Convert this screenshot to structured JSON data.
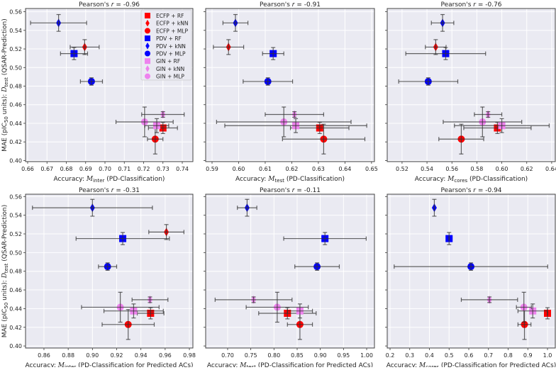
{
  "chart_data": {
    "type": "scatter",
    "ylabel": {
      "pre": "MAE (pIC",
      "sub1": "50",
      "mid": " units): ",
      "sym": "D",
      "sub2": "test",
      "post": " (QSAR-Prediction)"
    },
    "yticks": [
      0.4,
      0.42,
      0.44,
      0.46,
      0.48,
      0.5,
      0.52,
      0.54,
      0.56
    ],
    "legend": {
      "placement": "top-right of first panel"
    },
    "series": [
      {
        "name": "ECFP + RF",
        "color": "#ff0000",
        "marker": "square",
        "y": 0.435,
        "yerr": 0.006
      },
      {
        "name": "ECFP + kNN",
        "color": "#ff0000",
        "marker": "diamond",
        "y": 0.522,
        "yerr": 0.008
      },
      {
        "name": "ECFP + MLP",
        "color": "#ff0000",
        "marker": "circle",
        "y": 0.423,
        "yerr": 0.016
      },
      {
        "name": "PDV + RF",
        "color": "#0000ff",
        "marker": "square",
        "y": 0.515,
        "yerr": 0.0065
      },
      {
        "name": "PDV + kNN",
        "color": "#0000ff",
        "marker": "diamond",
        "y": 0.548,
        "yerr": 0.009
      },
      {
        "name": "PDV + MLP",
        "color": "#0000ff",
        "marker": "circle",
        "y": 0.485,
        "yerr": 0.004
      },
      {
        "name": "GIN + RF",
        "color": "#ee82ee",
        "marker": "square",
        "y": 0.4375,
        "yerr": 0.0075
      },
      {
        "name": "GIN + kNN",
        "color": "#ee82ee",
        "marker": "diamond",
        "y": 0.4495,
        "yerr": 0.003
      },
      {
        "name": "GIN + MLP",
        "color": "#ee82ee",
        "marker": "circle",
        "y": 0.4415,
        "yerr": 0.016
      }
    ],
    "panels": [
      {
        "title_pre": "Pearson's ",
        "title_r": "r",
        "title_post": " = -0.96",
        "xlabel": {
          "pre": "Accuracy: ",
          "sym": "M",
          "sub": "inter",
          "post": " (PD-Classification)"
        },
        "xlim": [
          0.6589,
          0.7455
        ],
        "ylim": [
          0.3988,
          0.5635
        ],
        "xdec": 2,
        "xticks": [
          0.66,
          0.67,
          0.68,
          0.69,
          0.7,
          0.71,
          0.72,
          0.73,
          0.74
        ],
        "x": [
          0.73,
          0.6895,
          0.726,
          0.684,
          0.676,
          0.693,
          0.7268,
          0.73,
          0.7205
        ],
        "xerr": [
          0.0075,
          0.0075,
          0.004,
          0.007,
          0.0145,
          0.0057,
          0.0062,
          0.011,
          0.0148
        ]
      },
      {
        "title_pre": "Pearson's ",
        "title_r": "r",
        "title_post": " = -0.91",
        "xlabel": {
          "pre": "Accuracy: ",
          "sym": "M",
          "sub": "test",
          "post": " (PD-Classification)"
        },
        "xlim": [
          0.5876,
          0.6511
        ],
        "ylim": [
          0.3988,
          0.5635
        ],
        "xdec": 2,
        "xticks": [
          0.59,
          0.6,
          0.61,
          0.62,
          0.63,
          0.64,
          0.65
        ],
        "x": [
          0.6305,
          0.5962,
          0.632,
          0.613,
          0.5988,
          0.611,
          0.6215,
          0.621,
          0.617
        ],
        "xerr": [
          0.011,
          0.0057,
          0.0155,
          0.004,
          0.0047,
          0.0093,
          0.0267,
          0.011,
          0.0253
        ]
      },
      {
        "title_pre": "Pearson's ",
        "title_r": "r",
        "title_post": " = -0.76",
        "xlabel": {
          "pre": "Accuracy: ",
          "sym": "M",
          "sub": "cores",
          "post": " (PD-Classification)"
        },
        "xlim": [
          0.5081,
          0.6429
        ],
        "ylim": [
          0.3988,
          0.5635
        ],
        "xdec": 2,
        "xticks": [
          0.52,
          0.54,
          0.56,
          0.58,
          0.6,
          0.62,
          0.64
        ],
        "x": [
          0.5965,
          0.547,
          0.5675,
          0.555,
          0.5525,
          0.541,
          0.6,
          0.589,
          0.5845
        ],
        "xerr": [
          0.027,
          0.0083,
          0.018,
          0.032,
          0.009,
          0.0237,
          0.038,
          0.011,
          0.0315
        ]
      },
      {
        "title_pre": "Pearson's ",
        "title_r": "r",
        "title_post": " = -0.31",
        "xlabel": {
          "pre": "Accuracy: ",
          "sym": "M",
          "sub": "inter",
          "post": " (PD-Classification for Predicted ACs)"
        },
        "xlim": [
          0.8448,
          0.9829
        ],
        "ylim": [
          0.3978,
          0.5625
        ],
        "xdec": 2,
        "xticks": [
          0.86,
          0.88,
          0.9,
          0.92,
          0.94,
          0.96,
          0.98
        ],
        "x": [
          0.948,
          0.961,
          0.9295,
          0.925,
          0.9,
          0.9125,
          0.934,
          0.9475,
          0.923
        ],
        "xerr": [
          0.011,
          0.0145,
          0.0215,
          0.0385,
          0.0495,
          0.0075,
          0.0245,
          0.0148,
          0.032
        ]
      },
      {
        "title_pre": "Pearson's ",
        "title_r": "r",
        "title_post": " = -0.11",
        "xlabel": {
          "pre": "Accuracy: ",
          "sym": "M",
          "sub": "test",
          "post": " (PD-Classification for Predicted ACs)"
        },
        "xlim": [
          0.6526,
          1.0168
        ],
        "ylim": [
          0.3978,
          0.5625
        ],
        "xdec": 2,
        "xticks": [
          0.7,
          0.75,
          0.8,
          0.85,
          0.9,
          0.95,
          1.0
        ],
        "x": [
          0.829,
          null,
          0.856,
          0.91,
          0.742,
          0.893,
          0.856,
          0.756,
          0.807
        ],
        "xerr": [
          0.062,
          null,
          0.027,
          0.089,
          0.021,
          0.048,
          0.027,
          0.083,
          0.067
        ]
      },
      {
        "title_pre": "Pearson's ",
        "title_r": "r",
        "title_post": " = -0.94",
        "xlabel": {
          "pre": "Accuracy: ",
          "sym": "M",
          "sub": "cores",
          "post": " (PD-Classification for Predicted ACs)"
        },
        "xlim": [
          0.1856,
          1.0396
        ],
        "ylim": [
          0.3978,
          0.5625
        ],
        "xdec": 1,
        "xticks": [
          0.2,
          0.3,
          0.4,
          0.5,
          0.6,
          0.7,
          0.8,
          0.9,
          1.0
        ],
        "x": [
          1.0,
          null,
          0.883,
          0.5,
          0.425,
          0.611,
          0.925,
          0.705,
          0.88
        ],
        "xerr": [
          0.0,
          null,
          0.033,
          0.0,
          0.0,
          0.39,
          0.075,
          0.143,
          0.038
        ]
      }
    ]
  }
}
